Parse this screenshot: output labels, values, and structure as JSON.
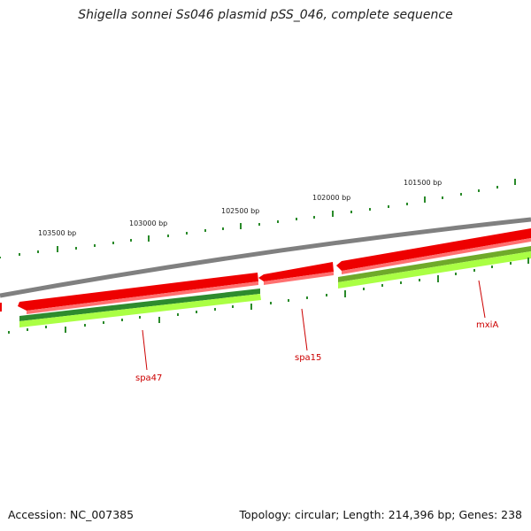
{
  "title": "Shigella sonnei Ss046 plasmid pSS_046, complete sequence",
  "footer": {
    "accession": "Accession: NC_007385",
    "summary": "Topology: circular; Length: 214,396 bp; Genes: 238"
  },
  "tick_labels": [
    "103500 bp",
    "103000 bp",
    "102500 bp",
    "102000 bp",
    "101500 bp"
  ],
  "gene_labels": [
    "spa47",
    "spa15",
    "mxiA"
  ],
  "colors": {
    "backbone": "#808080",
    "forward_gene": "#ee0000",
    "forward_gene_shade": "#ff7070",
    "cds_dark": "#2e8b2e",
    "cds_light": "#aaff44",
    "tick": "#2a8a2a",
    "label": "#cc0000"
  }
}
